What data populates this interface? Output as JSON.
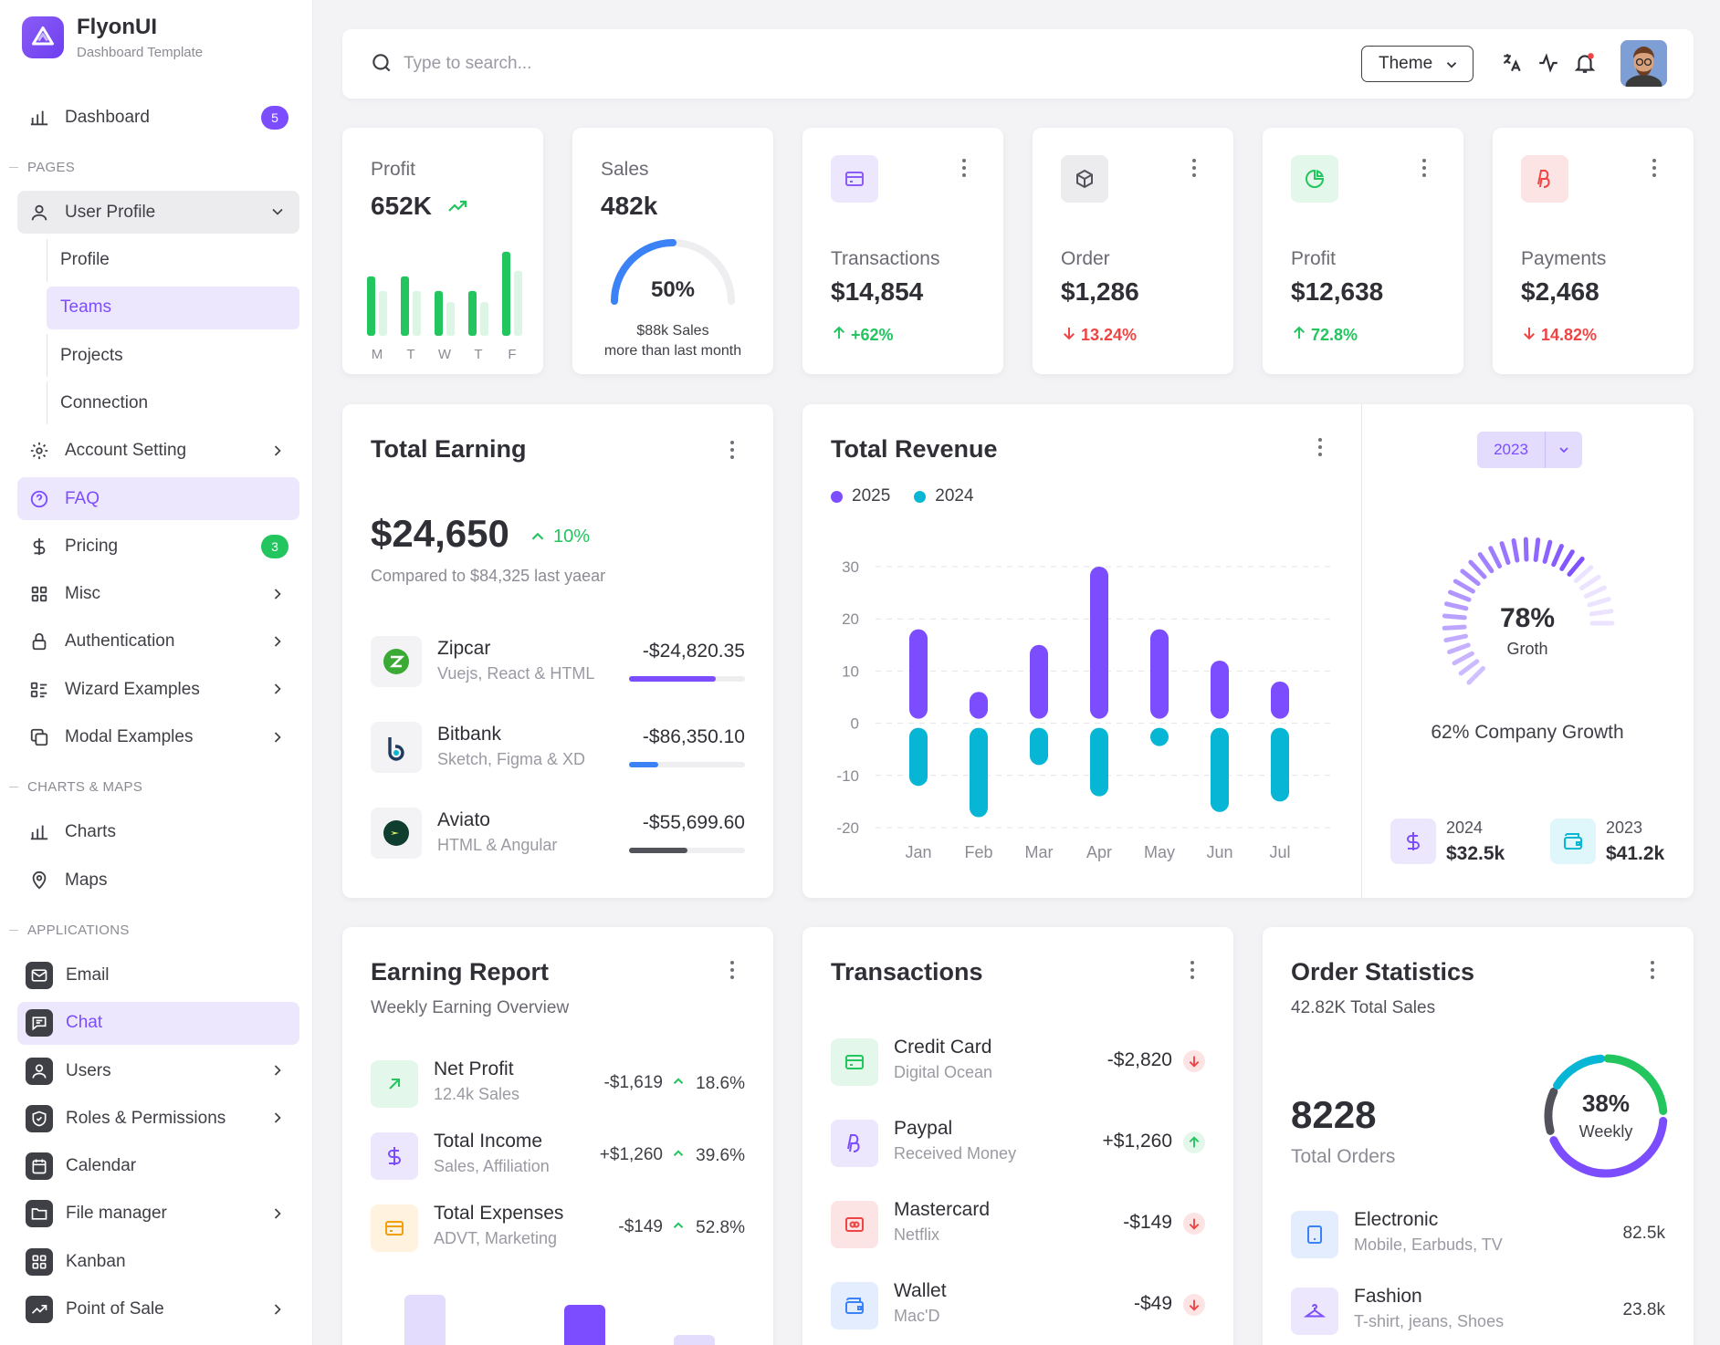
{
  "brand": {
    "name": "FlyonUI",
    "subtitle": "Dashboard Template"
  },
  "sidebar": {
    "dashboard": {
      "label": "Dashboard",
      "badge": "5"
    },
    "section_pages": "PAGES",
    "user_profile": "User Profile",
    "user_profile_sub": [
      "Profile",
      "Teams",
      "Projects",
      "Connection"
    ],
    "account_setting": "Account Setting",
    "faq": "FAQ",
    "pricing": {
      "label": "Pricing",
      "badge": "3"
    },
    "misc": "Misc",
    "authentication": "Authentication",
    "wizard_examples": "Wizard Examples",
    "modal_examples": "Modal Examples",
    "section_charts": "CHARTS & MAPS",
    "charts": "Charts",
    "maps": "Maps",
    "section_apps": "APPLICATIONS",
    "email": "Email",
    "chat": "Chat",
    "users": "Users",
    "roles": "Roles & Permissions",
    "calendar": "Calendar",
    "file_manager": "File manager",
    "kanban": "Kanban",
    "pos": "Point of Sale"
  },
  "header": {
    "search_placeholder": "Type to search...",
    "theme_label": "Theme"
  },
  "profit_card": {
    "label": "Profit",
    "value": "652K",
    "days": [
      "M",
      "T",
      "W",
      "T",
      "F"
    ],
    "bars_main": [
      53,
      53,
      40,
      40,
      75
    ],
    "bars_light": [
      40,
      40,
      30,
      30,
      58
    ]
  },
  "sales_card": {
    "label": "Sales",
    "value": "482k",
    "percent": "50%",
    "progress": 0.5,
    "note1": "$88k Sales",
    "note2": "more than last month"
  },
  "stat_cards": [
    {
      "label": "Transactions",
      "value": "$14,854",
      "delta": "+62%",
      "dir": "up",
      "icon": "credit-card-icon",
      "color": "#8b5cf6",
      "bg": "#ede7fe"
    },
    {
      "label": "Order",
      "value": "$1,286",
      "delta": "13.24%",
      "dir": "down",
      "icon": "box-icon",
      "color": "#52525b",
      "bg": "#ececee"
    },
    {
      "label": "Profit",
      "value": "$12,638",
      "delta": "72.8%",
      "dir": "up",
      "icon": "pie-chart-icon",
      "color": "#22c55e",
      "bg": "#e3f8ea"
    },
    {
      "label": "Payments",
      "value": "$2,468",
      "delta": "14.82%",
      "dir": "down",
      "icon": "paypal-icon",
      "color": "#ef4444",
      "bg": "#fde4e4"
    }
  ],
  "total_earning": {
    "title": "Total Earning",
    "amount": "$24,650",
    "change": "10%",
    "compare": "Compared to $84,325 last yaear",
    "items": [
      {
        "name": "Zipcar",
        "sub": "Vuejs, React & HTML",
        "amount": "-$24,820.35",
        "progress": 0.75,
        "color": "#7c4dff"
      },
      {
        "name": "Bitbank",
        "sub": "Sketch, Figma & XD",
        "amount": "-$86,350.10",
        "progress": 0.25,
        "color": "#3b82f6"
      },
      {
        "name": "Aviato",
        "sub": "HTML & Angular",
        "amount": "-$55,699.60",
        "progress": 0.5,
        "color": "#52525b"
      }
    ]
  },
  "total_revenue": {
    "title": "Total Revenue",
    "year_select": "2023",
    "growth_percent": "78%",
    "growth_label": "Groth",
    "growth_value": 0.78,
    "company_growth": "62% Company Growth",
    "summary": [
      {
        "year": "2024",
        "value": "$32.5k",
        "icon": "dollar-icon",
        "color": "#7c4dff",
        "bg": "#ede7fe"
      },
      {
        "year": "2023",
        "value": "$41.2k",
        "icon": "wallet-icon",
        "color": "#06b6d4",
        "bg": "#dff6fa"
      }
    ]
  },
  "chart_data": {
    "type": "bar",
    "categories": [
      "Jan",
      "Feb",
      "Mar",
      "Apr",
      "May",
      "Jun",
      "Jul"
    ],
    "series": [
      {
        "name": "2025",
        "color": "#7c4dff",
        "values": [
          18,
          6,
          15,
          30,
          18,
          12,
          8
        ]
      },
      {
        "name": "2024",
        "color": "#06b6d4",
        "values": [
          -12,
          -18,
          -8,
          -14,
          -4,
          -17,
          -15
        ]
      }
    ],
    "ylim": [
      -20,
      30
    ],
    "yticks": [
      30,
      20,
      10,
      0,
      -10,
      -20
    ],
    "grid": true,
    "legend": "top-left"
  },
  "earning_report": {
    "title": "Earning Report",
    "subtitle": "Weekly Earning Overview",
    "items": [
      {
        "name": "Net Profit",
        "sub": "12.4k Sales",
        "amount": "-$1,619",
        "change": "18.6%",
        "icon": "arrow-up-right-icon",
        "color": "#22c55e",
        "bg": "#e3f8ea"
      },
      {
        "name": "Total Income",
        "sub": "Sales, Affiliation",
        "amount": "+$1,260",
        "change": "39.6%",
        "icon": "dollar-icon",
        "color": "#7c4dff",
        "bg": "#ede7fe"
      },
      {
        "name": "Total Expenses",
        "sub": "ADVT, Marketing",
        "amount": "-$149",
        "change": "52.8%",
        "icon": "credit-card-icon",
        "color": "#f59e0b",
        "bg": "#fff3e0"
      }
    ],
    "mini_bars": [
      0.7,
      0.02,
      0.6,
      0.3
    ],
    "mini_colors": [
      "#e4dcfd",
      "#e4dcfd",
      "#7c4dff",
      "#e4dcfd"
    ]
  },
  "transactions": {
    "title": "Transactions",
    "items": [
      {
        "name": "Credit Card",
        "sub": "Digital Ocean",
        "amount": "-$2,820",
        "dir": "down",
        "icon": "credit-card-icon",
        "color": "#22c55e",
        "bg": "#e3f8ea"
      },
      {
        "name": "Paypal",
        "sub": "Received Money",
        "amount": "+$1,260",
        "dir": "up",
        "icon": "paypal-icon",
        "color": "#7c4dff",
        "bg": "#ede7fe"
      },
      {
        "name": "Mastercard",
        "sub": "Netflix",
        "amount": "-$149",
        "dir": "down",
        "icon": "mastercard-icon",
        "color": "#ef4444",
        "bg": "#fde4e4"
      },
      {
        "name": "Wallet",
        "sub": "Mac'D",
        "amount": "-$49",
        "dir": "down",
        "icon": "wallet-icon",
        "color": "#3b82f6",
        "bg": "#e3edfd"
      }
    ]
  },
  "order_statistics": {
    "title": "Order Statistics",
    "subtitle": "42.82K Total Sales",
    "total": "8228",
    "total_label": "Total Orders",
    "ring_percent": "38%",
    "ring_label": "Weekly",
    "items": [
      {
        "name": "Electronic",
        "sub": "Mobile, Earbuds, TV",
        "value": "82.5k",
        "icon": "tablet-icon",
        "color": "#3b82f6",
        "bg": "#e3edfd"
      },
      {
        "name": "Fashion",
        "sub": "T-shirt, jeans, Shoes",
        "value": "23.8k",
        "icon": "hanger-icon",
        "color": "#7c4dff",
        "bg": "#ede7fe"
      }
    ]
  }
}
